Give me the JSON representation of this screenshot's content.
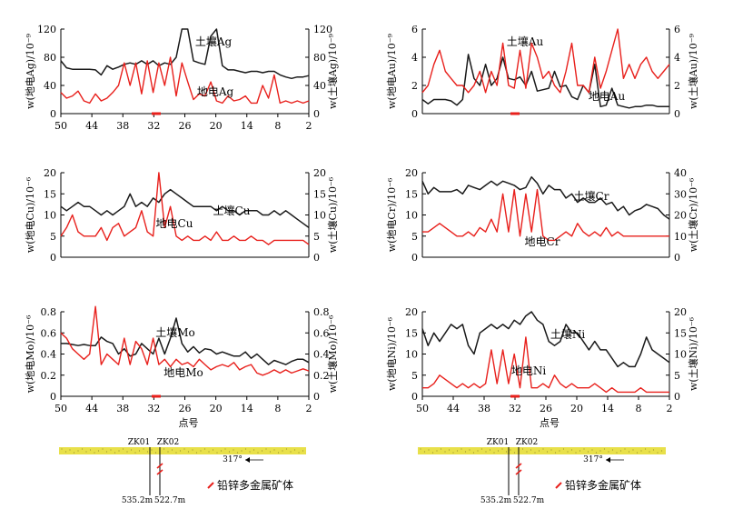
{
  "colors": {
    "soil": "#1a1a1a",
    "geo": "#e8201c",
    "ground": "#e8e04a",
    "marker": "#e8201c"
  },
  "chart_data": [
    {
      "type": "line",
      "x_ticks": [
        "50",
        "44",
        "38",
        "32",
        "26",
        "20",
        "14",
        "8",
        "2"
      ],
      "xlabel": "",
      "ylabel_left": "w(地电Ag)/10⁻⁹",
      "ylabel_right": "w(土壤Ag)/10⁻⁹",
      "ylim_left": [
        0,
        120
      ],
      "yticks_left": [
        "0",
        "40",
        "80",
        "120"
      ],
      "ylim_right": [
        0,
        120
      ],
      "yticks_right": [
        "0",
        "40",
        "80",
        "120"
      ],
      "series": [
        {
          "name": "土壤Ag",
          "axis": "right",
          "color": "#1a1a1a",
          "values": [
            75,
            65,
            63,
            63,
            63,
            63,
            62,
            55,
            68,
            63,
            66,
            70,
            72,
            70,
            75,
            70,
            75,
            68,
            72,
            70,
            80,
            120,
            120,
            75,
            72,
            70,
            110,
            120,
            68,
            62,
            62,
            60,
            58,
            60,
            60,
            58,
            60,
            60,
            55,
            52,
            50,
            52,
            52,
            54
          ]
        },
        {
          "name": "地电Ag",
          "axis": "left",
          "color": "#e8201c",
          "values": [
            30,
            22,
            25,
            32,
            18,
            15,
            28,
            18,
            22,
            30,
            40,
            72,
            40,
            72,
            28,
            75,
            30,
            72,
            40,
            80,
            25,
            72,
            45,
            20,
            28,
            25,
            45,
            18,
            15,
            25,
            18,
            20,
            25,
            15,
            15,
            40,
            22,
            55,
            15,
            18,
            15,
            18,
            15,
            18
          ]
        }
      ]
    },
    {
      "type": "line",
      "x_ticks": [],
      "xlabel": "",
      "ylabel_left": "w(地电Au)/10⁻⁹",
      "ylabel_right": "w(土壤Au)/10⁻⁹",
      "ylim_left": [
        0,
        6
      ],
      "yticks_left": [
        "0",
        "2",
        "4",
        "6"
      ],
      "ylim_right": [
        0,
        6
      ],
      "yticks_right": [
        "0",
        "2",
        "4",
        "6"
      ],
      "series": [
        {
          "name": "土壤Au",
          "axis": "right",
          "color": "#1a1a1a",
          "values": [
            1.0,
            0.7,
            1.0,
            1.0,
            1.0,
            0.9,
            0.6,
            1.0,
            4.2,
            2.5,
            2.0,
            3.5,
            2.0,
            2.5,
            4.0,
            2.5,
            2.4,
            2.6,
            2.0,
            3.0,
            1.6,
            1.7,
            1.8,
            3.0,
            1.9,
            2.0,
            1.2,
            1.0,
            2.0,
            1.5,
            3.5,
            0.5,
            0.6,
            1.8,
            0.6,
            0.5,
            0.4,
            0.5,
            0.5,
            0.6,
            0.6,
            0.5,
            0.5,
            0.5
          ]
        },
        {
          "name": "地电Au",
          "axis": "left",
          "color": "#e8201c",
          "values": [
            1.5,
            2.0,
            3.5,
            4.5,
            3.0,
            2.5,
            2.0,
            2.0,
            1.5,
            2.0,
            3.0,
            1.5,
            3.0,
            2.0,
            5.0,
            2.0,
            1.8,
            4.5,
            1.8,
            5.0,
            4.0,
            2.5,
            3.0,
            2.0,
            1.5,
            3.0,
            5.0,
            2.0,
            2.0,
            1.5,
            4.0,
            1.8,
            3.0,
            4.5,
            6.0,
            2.5,
            3.5,
            2.5,
            3.5,
            4.0,
            3.0,
            2.5,
            3.0,
            3.5
          ]
        }
      ]
    },
    {
      "type": "line",
      "x_ticks": [],
      "xlabel": "",
      "ylabel_left": "w(地电Cu)/10⁻⁶",
      "ylabel_right": "w(土壤Cu)/10⁻⁶",
      "ylim_left": [
        0,
        20
      ],
      "yticks_left": [
        "0",
        "5",
        "10",
        "15",
        "20"
      ],
      "ylim_right": [
        0,
        20
      ],
      "yticks_right": [
        "0",
        "5",
        "10",
        "15",
        "20"
      ],
      "series": [
        {
          "name": "土壤Cu",
          "axis": "right",
          "color": "#1a1a1a",
          "values": [
            12,
            11,
            12,
            13,
            12,
            12,
            11,
            10,
            11,
            10,
            11,
            12,
            15,
            12,
            13,
            12,
            14,
            13,
            15,
            16,
            15,
            14,
            13,
            12,
            12,
            12,
            12,
            11,
            12,
            11,
            11,
            10,
            11,
            11,
            11,
            10,
            10,
            11,
            10,
            11,
            10,
            9,
            8,
            7
          ]
        },
        {
          "name": "地电Cu",
          "axis": "left",
          "color": "#e8201c",
          "values": [
            5,
            7,
            10,
            6,
            5,
            5,
            5,
            7,
            4,
            7,
            8,
            5,
            6,
            7,
            11,
            6,
            5,
            20,
            7,
            12,
            5,
            4,
            5,
            4,
            4,
            5,
            4,
            6,
            4,
            4,
            5,
            4,
            4,
            5,
            4,
            4,
            3,
            4,
            4,
            4,
            4,
            4,
            4,
            3
          ]
        }
      ]
    },
    {
      "type": "line",
      "x_ticks": [],
      "xlabel": "",
      "ylabel_left": "w(地电Cr)/10⁻⁶",
      "ylabel_right": "w(土壤Cr)/10⁻⁶",
      "ylim_left": [
        0,
        20
      ],
      "yticks_left": [
        "0",
        "5",
        "10",
        "15",
        "20"
      ],
      "ylim_right": [
        0,
        40
      ],
      "yticks_right": [
        "0",
        "10",
        "20",
        "30",
        "40"
      ],
      "series": [
        {
          "name": "土壤Cr",
          "axis": "right",
          "color": "#1a1a1a",
          "values": [
            36,
            30,
            33,
            31,
            31,
            31,
            32,
            30,
            34,
            33,
            32,
            34,
            36,
            34,
            36,
            35,
            34,
            32,
            33,
            38,
            35,
            30,
            34,
            32,
            32,
            28,
            30,
            26,
            28,
            26,
            26,
            28,
            25,
            26,
            22,
            24,
            20,
            22,
            23,
            25,
            24,
            23,
            20,
            18
          ]
        },
        {
          "name": "地电Cr",
          "axis": "left",
          "color": "#e8201c",
          "values": [
            6,
            6,
            7,
            8,
            7,
            6,
            5,
            5,
            6,
            5,
            7,
            6,
            9,
            6,
            15,
            6,
            16,
            5,
            15,
            6,
            16,
            5,
            4,
            4,
            5,
            6,
            5,
            8,
            6,
            5,
            6,
            5,
            7,
            5,
            6,
            5,
            5,
            5,
            5,
            5,
            5,
            5,
            5,
            5
          ]
        }
      ]
    },
    {
      "type": "line",
      "x_ticks": [
        "50",
        "44",
        "38",
        "32",
        "26",
        "20",
        "14",
        "8",
        "2"
      ],
      "xlabel": "点号",
      "ylabel_left": "w(地电Mo)/10⁻⁶",
      "ylabel_right": "w(土壤Mo)/10⁻⁶",
      "ylim_left": [
        0,
        0.8
      ],
      "yticks_left": [
        "0",
        "0.2",
        "0.4",
        "0.6",
        "0.8"
      ],
      "ylim_right": [
        0,
        0.8
      ],
      "yticks_right": [
        "0",
        "0.2",
        "0.4",
        "0.6",
        "0.8"
      ],
      "series": [
        {
          "name": "土壤Mo",
          "axis": "right",
          "color": "#1a1a1a",
          "values": [
            0.5,
            0.5,
            0.49,
            0.48,
            0.49,
            0.48,
            0.48,
            0.56,
            0.52,
            0.5,
            0.4,
            0.45,
            0.38,
            0.4,
            0.5,
            0.45,
            0.4,
            0.55,
            0.4,
            0.55,
            0.74,
            0.5,
            0.42,
            0.47,
            0.41,
            0.45,
            0.44,
            0.4,
            0.42,
            0.4,
            0.38,
            0.38,
            0.42,
            0.36,
            0.4,
            0.35,
            0.3,
            0.34,
            0.32,
            0.3,
            0.33,
            0.35,
            0.35,
            0.32
          ]
        },
        {
          "name": "地电Mo",
          "axis": "left",
          "color": "#e8201c",
          "values": [
            0.6,
            0.55,
            0.45,
            0.4,
            0.35,
            0.4,
            0.85,
            0.3,
            0.4,
            0.35,
            0.3,
            0.55,
            0.3,
            0.52,
            0.45,
            0.3,
            0.55,
            0.3,
            0.35,
            0.28,
            0.35,
            0.3,
            0.32,
            0.28,
            0.35,
            0.3,
            0.25,
            0.28,
            0.3,
            0.28,
            0.32,
            0.25,
            0.28,
            0.3,
            0.22,
            0.2,
            0.22,
            0.25,
            0.22,
            0.25,
            0.22,
            0.24,
            0.26,
            0.24
          ]
        }
      ]
    },
    {
      "type": "line",
      "x_ticks": [
        "50",
        "44",
        "38",
        "32",
        "26",
        "20",
        "14",
        "8",
        "2"
      ],
      "xlabel": "点号",
      "ylabel_left": "w(地电Ni)/10⁻⁶",
      "ylabel_right": "w(土壤Ni)/10⁻⁶",
      "ylim_left": [
        0,
        20
      ],
      "yticks_left": [
        "0",
        "5",
        "10",
        "15",
        "20"
      ],
      "ylim_right": [
        0,
        20
      ],
      "yticks_right": [
        "0",
        "5",
        "10",
        "15",
        "20"
      ],
      "series": [
        {
          "name": "土壤Ni",
          "axis": "right",
          "color": "#1a1a1a",
          "values": [
            16,
            12,
            15,
            13,
            15,
            17,
            16,
            17,
            12,
            10,
            15,
            16,
            17,
            16,
            17,
            16,
            18,
            17,
            19,
            20,
            18,
            17,
            13,
            12,
            13,
            17,
            15,
            15,
            13,
            11,
            13,
            11,
            11,
            9,
            7,
            8,
            7,
            7,
            10,
            14,
            11,
            10,
            9,
            8
          ]
        },
        {
          "name": "地电Ni",
          "axis": "left",
          "color": "#e8201c",
          "values": [
            2,
            2,
            3,
            5,
            4,
            3,
            2,
            3,
            2,
            3,
            2,
            3,
            11,
            3,
            11,
            3,
            10,
            2,
            14,
            2,
            2,
            3,
            2,
            5,
            3,
            2,
            3,
            2,
            2,
            2,
            3,
            2,
            1,
            2,
            1,
            1,
            1,
            1,
            2,
            1,
            1,
            1,
            1,
            1
          ]
        }
      ]
    }
  ],
  "sections": [
    {
      "holes": [
        "ZK01",
        "ZK02"
      ],
      "depths": [
        "535.2m",
        "522.7m"
      ],
      "dip": "317°",
      "legend": "铅锌多金属矿体"
    },
    {
      "holes": [
        "ZK01",
        "ZK02"
      ],
      "depths": [
        "535.2m",
        "522.7m"
      ],
      "dip": "317°",
      "legend": "铅锌多金属矿体"
    }
  ]
}
